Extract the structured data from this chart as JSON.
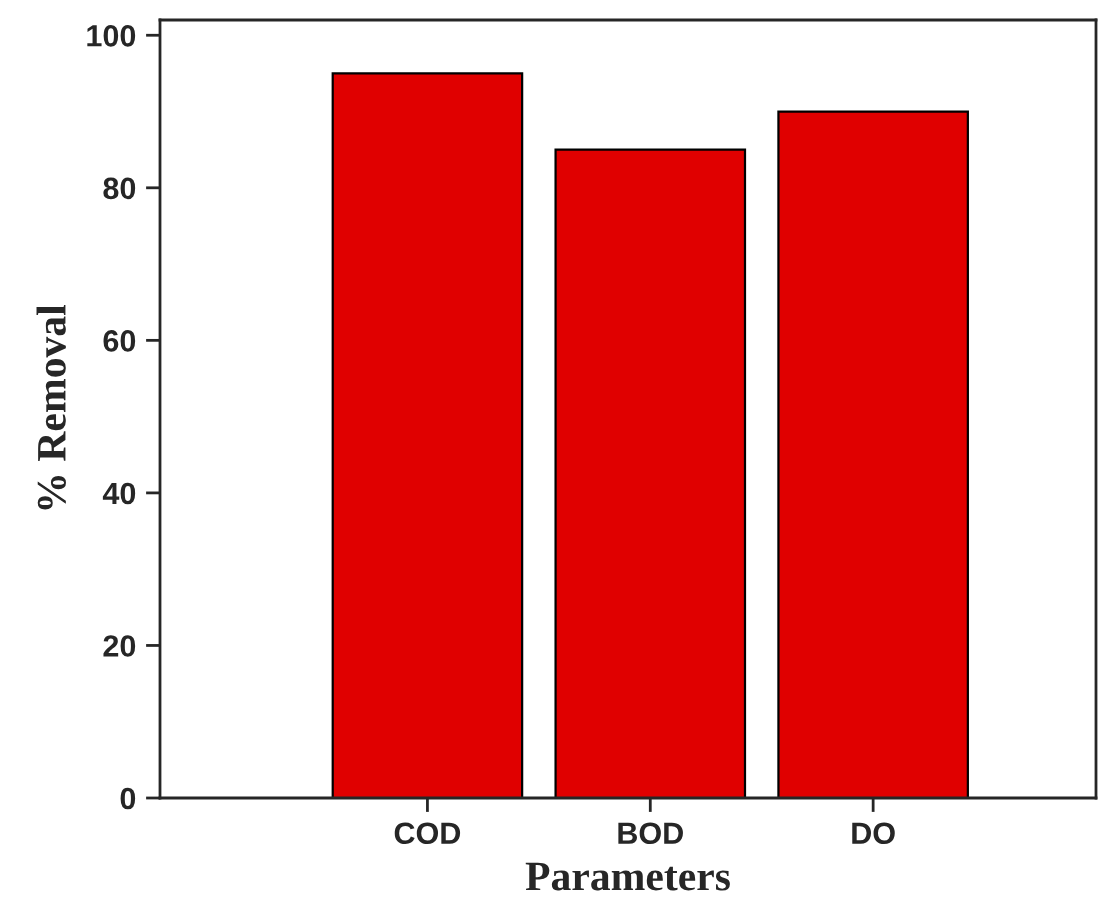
{
  "chart_data": {
    "type": "bar",
    "xlabel": "Parameters",
    "ylabel": "% Removal",
    "categories": [
      "COD",
      "BOD",
      "DO"
    ],
    "values": [
      95,
      85,
      90
    ],
    "color": "#e00000",
    "ylim": [
      0,
      102
    ],
    "yticks": [
      0,
      20,
      40,
      60,
      80,
      100
    ],
    "grid": false
  }
}
